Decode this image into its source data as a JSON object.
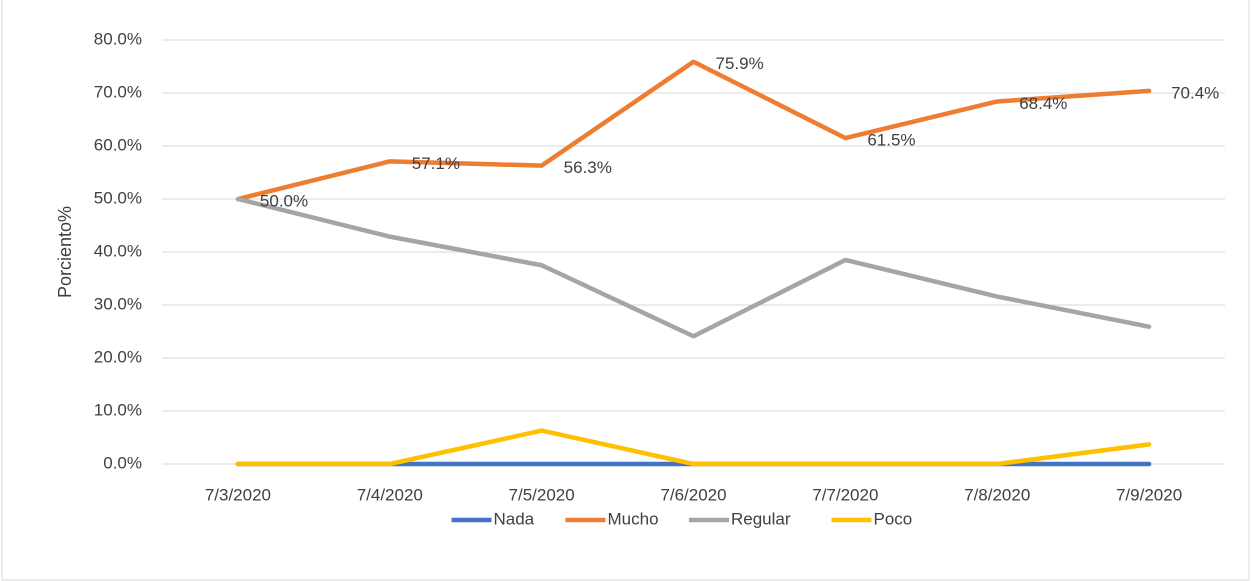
{
  "chart_data": {
    "type": "line",
    "y_label": "Porciento%",
    "categories": [
      "7/3/2020",
      "7/4/2020",
      "7/5/2020",
      "7/6/2020",
      "7/7/2020",
      "7/8/2020",
      "7/9/2020"
    ],
    "series": [
      {
        "name": "Nada",
        "color": "#4472c4",
        "values": [
          0,
          0,
          0,
          0,
          0,
          0,
          0
        ]
      },
      {
        "name": "Mucho",
        "color": "#ed7d31",
        "values": [
          50.0,
          57.1,
          56.3,
          75.9,
          61.5,
          68.4,
          70.4
        ],
        "value_labels": [
          "50.0%",
          "57.1%",
          "56.3%",
          "75.9%",
          "61.5%",
          "68.4%",
          "70.4%"
        ]
      },
      {
        "name": "Regular",
        "color": "#a5a5a5",
        "values": [
          50.0,
          42.9,
          37.5,
          24.1,
          38.5,
          31.6,
          25.9
        ]
      },
      {
        "name": "Poco",
        "color": "#ffc000",
        "values": [
          0,
          0,
          6.3,
          0,
          0,
          0,
          3.7
        ]
      }
    ],
    "ylim": [
      0,
      80
    ],
    "yticks": [
      {
        "value": 0,
        "label": "0.0%"
      },
      {
        "value": 10,
        "label": "10.0%"
      },
      {
        "value": 20,
        "label": "20.0%"
      },
      {
        "value": 30,
        "label": "30.0%"
      },
      {
        "value": 40,
        "label": "40.0%"
      },
      {
        "value": 50,
        "label": "50.0%"
      },
      {
        "value": 60,
        "label": "60.0%"
      },
      {
        "value": 70,
        "label": "70.0%"
      },
      {
        "value": 80,
        "label": "80.0%"
      }
    ],
    "grid": true,
    "legend": "bottom"
  }
}
